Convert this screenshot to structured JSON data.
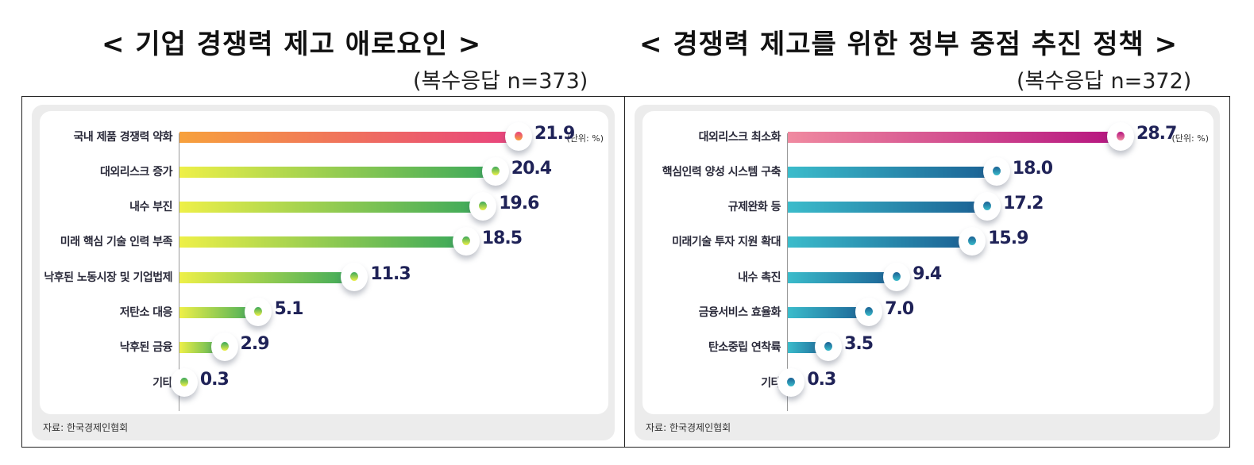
{
  "chart_data": [
    {
      "type": "bar",
      "orientation": "horizontal",
      "title": "< 기업 경쟁력 제고 애로요인 >",
      "subtitle": "(복수응답  n=373)",
      "unit": "(단위: %)",
      "source": "자료: 한국경제인협회",
      "xlabel": "",
      "ylabel": "",
      "grid": false,
      "categories": [
        "국내 제품 경쟁력 약화",
        "대외리스크 증가",
        "내수 부진",
        "미래 핵심 기술 인력 부족",
        "낙후된 노동시장 및 기업법제",
        "저탄소 대응",
        "낙후된 금융",
        "기타"
      ],
      "values": [
        21.9,
        20.4,
        19.6,
        18.5,
        11.3,
        5.1,
        2.9,
        0.3
      ],
      "value_labels": [
        "21.9",
        "20.4",
        "19.6",
        "18.5",
        "11.3",
        "5.1",
        "2.9",
        "0.3"
      ],
      "highlight_color": [
        "#f7a13c",
        "#e8427e"
      ],
      "bar_color": [
        "#eef048",
        "#3aa85a"
      ]
    },
    {
      "type": "bar",
      "orientation": "horizontal",
      "title": "< 경쟁력 제고를 위한 정부 중점 추진 정책 >",
      "subtitle": "(복수응답  n=372)",
      "unit": "(단위: %)",
      "source": "자료: 한국경제인협회",
      "xlabel": "",
      "ylabel": "",
      "grid": false,
      "categories": [
        "대외리스크 최소화",
        "핵심인력 양성 시스템 구축",
        "규제완화 등",
        "미래기술 투자 지원 확대",
        "내수 촉진",
        "금융서비스 효율화",
        "탄소중립 연착륙",
        "기타"
      ],
      "values": [
        28.7,
        18.0,
        17.2,
        15.9,
        9.4,
        7.0,
        3.5,
        0.3
      ],
      "value_labels": [
        "28.7",
        "18.0",
        "17.2",
        "15.9",
        "9.4",
        "7.0",
        "3.5",
        "0.3"
      ],
      "highlight_color": [
        "#f08aa0",
        "#b5137f"
      ],
      "bar_color": [
        "#3bbccb",
        "#1a5f93"
      ]
    }
  ]
}
